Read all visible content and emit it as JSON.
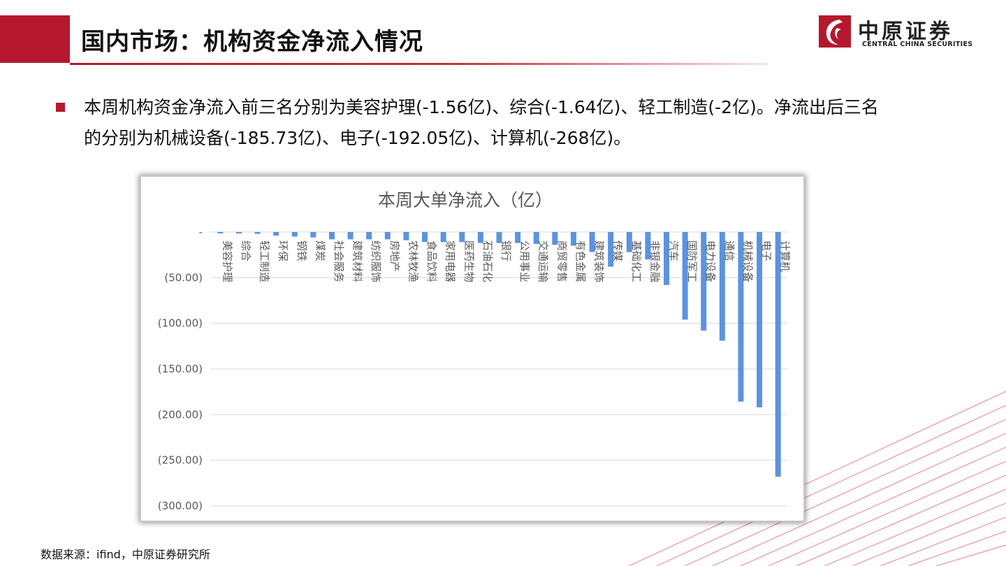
{
  "header": {
    "title": "国内市场：机构资金净流入情况",
    "logo_cn": "中原证券",
    "logo_en": "CENTRAL CHINA SECURITIES"
  },
  "summary": {
    "line1": "本周机构资金净流入前三名分别为美容护理(-1.56亿)、综合(-1.64亿)、轻工制造(-2亿)。净流出后三名",
    "line2": "的分别为机械设备(-185.73亿)、电子(-192.05亿)、计算机(-268亿)。"
  },
  "footer": {
    "source": "数据来源：ifind，中原证券研究所"
  },
  "colors": {
    "brand_red": "#b5182e",
    "bar_blue": "#5b93e0",
    "grid": "#d9d9d9"
  },
  "chart_data": {
    "type": "bar",
    "title": "本周大单净流入（亿）",
    "ylim": [
      -300,
      0
    ],
    "yticks": [
      "-",
      "(50.00)",
      "(100.00)",
      "(150.00)",
      "(200.00)",
      "(250.00)",
      "(300.00)"
    ],
    "ytick_values": [
      0,
      -50,
      -100,
      -150,
      -200,
      -250,
      -300
    ],
    "grid": true,
    "categories": [
      "美容护理",
      "综合",
      "轻工制造",
      "环保",
      "钢铁",
      "煤炭",
      "社会服务",
      "建筑材料",
      "纺织服饰",
      "房地产",
      "农林牧渔",
      "食品饮料",
      "家用电器",
      "医药生物",
      "石油石化",
      "银行",
      "公用事业",
      "交通运输",
      "商贸零售",
      "有色金属",
      "建筑装饰",
      "传媒",
      "基础化工",
      "非银金融",
      "汽车",
      "国防军工",
      "电力设备",
      "通信",
      "机械设备",
      "电子",
      "计算机"
    ],
    "values": [
      -1.56,
      -1.64,
      -2,
      -4,
      -5,
      -6,
      -8,
      -8,
      -8,
      -8,
      -9,
      -11,
      -11,
      -11,
      -12,
      -12,
      -12,
      -13,
      -14,
      -15,
      -22,
      -38,
      -22,
      -30,
      -58,
      -96,
      -108,
      -119,
      -185.73,
      -192.05,
      -268
    ]
  }
}
